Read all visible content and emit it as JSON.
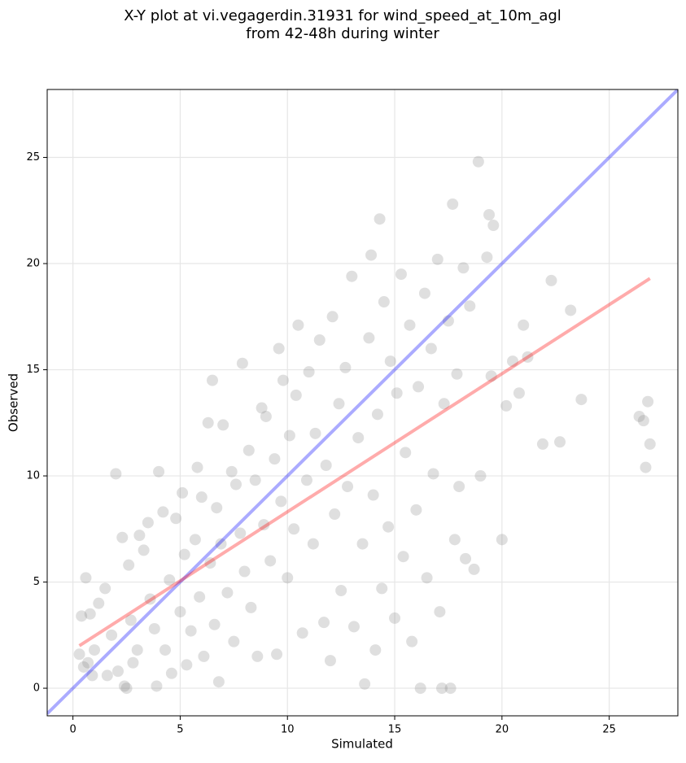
{
  "chart_data": {
    "type": "scatter",
    "title": [
      "X-Y plot at vi.vegagerdin.31931 for wind_speed_at_10m_agl",
      "from 42-48h during winter"
    ],
    "xlabel": "Simulated",
    "ylabel": "Observed",
    "xlim": [
      -1.2,
      28.2
    ],
    "ylim": [
      -1.3,
      28.2
    ],
    "xticks": [
      0,
      5,
      10,
      15,
      20,
      25
    ],
    "yticks": [
      0,
      5,
      10,
      15,
      20,
      25
    ],
    "grid": true,
    "color": "#808080",
    "x": [
      0.3,
      0.4,
      0.5,
      0.6,
      0.7,
      0.8,
      0.9,
      1.0,
      1.2,
      1.5,
      1.6,
      1.8,
      2.0,
      2.1,
      2.3,
      2.4,
      2.5,
      2.6,
      2.7,
      2.8,
      3.0,
      3.1,
      3.3,
      3.5,
      3.6,
      3.8,
      3.9,
      4.0,
      4.2,
      4.3,
      4.5,
      4.6,
      4.8,
      5.0,
      5.1,
      5.2,
      5.3,
      5.5,
      5.7,
      5.8,
      5.9,
      6.0,
      6.1,
      6.3,
      6.4,
      6.5,
      6.6,
      6.7,
      6.8,
      6.9,
      7.0,
      7.2,
      7.4,
      7.5,
      7.6,
      7.8,
      7.9,
      8.0,
      8.2,
      8.3,
      8.5,
      8.6,
      8.8,
      8.9,
      9.0,
      9.2,
      9.4,
      9.5,
      9.6,
      9.7,
      9.8,
      10.0,
      10.1,
      10.3,
      10.4,
      10.5,
      10.7,
      10.9,
      11.0,
      11.2,
      11.3,
      11.5,
      11.7,
      11.8,
      12.0,
      12.1,
      12.2,
      12.4,
      12.5,
      12.7,
      12.8,
      13.0,
      13.1,
      13.3,
      13.5,
      13.6,
      13.8,
      13.9,
      14.0,
      14.1,
      14.2,
      14.3,
      14.4,
      14.5,
      14.7,
      14.8,
      15.0,
      15.1,
      15.3,
      15.4,
      15.5,
      15.7,
      15.8,
      16.0,
      16.1,
      16.2,
      16.4,
      16.5,
      16.7,
      16.8,
      17.0,
      17.1,
      17.2,
      17.3,
      17.5,
      17.6,
      17.7,
      17.8,
      17.9,
      18.0,
      18.2,
      18.3,
      18.5,
      18.7,
      18.9,
      19.0,
      19.3,
      19.4,
      19.5,
      19.6,
      20.0,
      20.2,
      20.5,
      20.8,
      21.0,
      21.2,
      21.9,
      22.3,
      22.7,
      23.2,
      23.7,
      26.4,
      26.6,
      26.7,
      26.8,
      26.9
    ],
    "y": [
      1.6,
      3.4,
      1.0,
      5.2,
      1.2,
      3.5,
      0.6,
      1.8,
      4.0,
      4.7,
      0.6,
      2.5,
      10.1,
      0.8,
      7.1,
      0.1,
      0.0,
      5.8,
      3.2,
      1.2,
      1.8,
      7.2,
      6.5,
      7.8,
      4.2,
      2.8,
      0.1,
      10.2,
      8.3,
      1.8,
      5.1,
      0.7,
      8.0,
      3.6,
      9.2,
      6.3,
      1.1,
      2.7,
      7.0,
      10.4,
      4.3,
      9.0,
      1.5,
      12.5,
      5.9,
      14.5,
      3.0,
      8.5,
      0.3,
      6.8,
      12.4,
      4.5,
      10.2,
      2.2,
      9.6,
      7.3,
      15.3,
      5.5,
      11.2,
      3.8,
      9.8,
      1.5,
      13.2,
      7.7,
      12.8,
      6.0,
      10.8,
      1.6,
      16.0,
      8.8,
      14.5,
      5.2,
      11.9,
      7.5,
      13.8,
      17.1,
      2.6,
      9.8,
      14.9,
      6.8,
      12.0,
      16.4,
      3.1,
      10.5,
      1.3,
      17.5,
      8.2,
      13.4,
      4.6,
      15.1,
      9.5,
      19.4,
      2.9,
      11.8,
      6.8,
      0.2,
      16.5,
      20.4,
      9.1,
      1.8,
      12.9,
      22.1,
      4.7,
      18.2,
      7.6,
      15.4,
      3.3,
      13.9,
      19.5,
      6.2,
      11.1,
      17.1,
      2.2,
      8.4,
      14.2,
      0.0,
      18.6,
      5.2,
      16.0,
      10.1,
      20.2,
      3.6,
      0.0,
      13.4,
      17.3,
      0.0,
      22.8,
      7.0,
      14.8,
      9.5,
      19.8,
      6.1,
      18.0,
      5.6,
      24.8,
      10.0,
      20.3,
      22.3,
      14.7,
      21.8,
      7.0,
      13.3,
      15.4,
      13.9,
      17.1,
      15.6,
      11.5,
      19.2,
      11.6,
      17.8,
      13.6,
      12.8,
      12.6,
      10.4,
      13.5,
      11.5
    ],
    "lines": [
      {
        "color": "#0000ff",
        "x": [
          -1.2,
          28.2
        ],
        "y": [
          -1.2,
          28.2
        ]
      },
      {
        "color": "#ff0000",
        "x": [
          0.3,
          26.9
        ],
        "y": [
          2.0,
          19.3
        ]
      }
    ]
  }
}
